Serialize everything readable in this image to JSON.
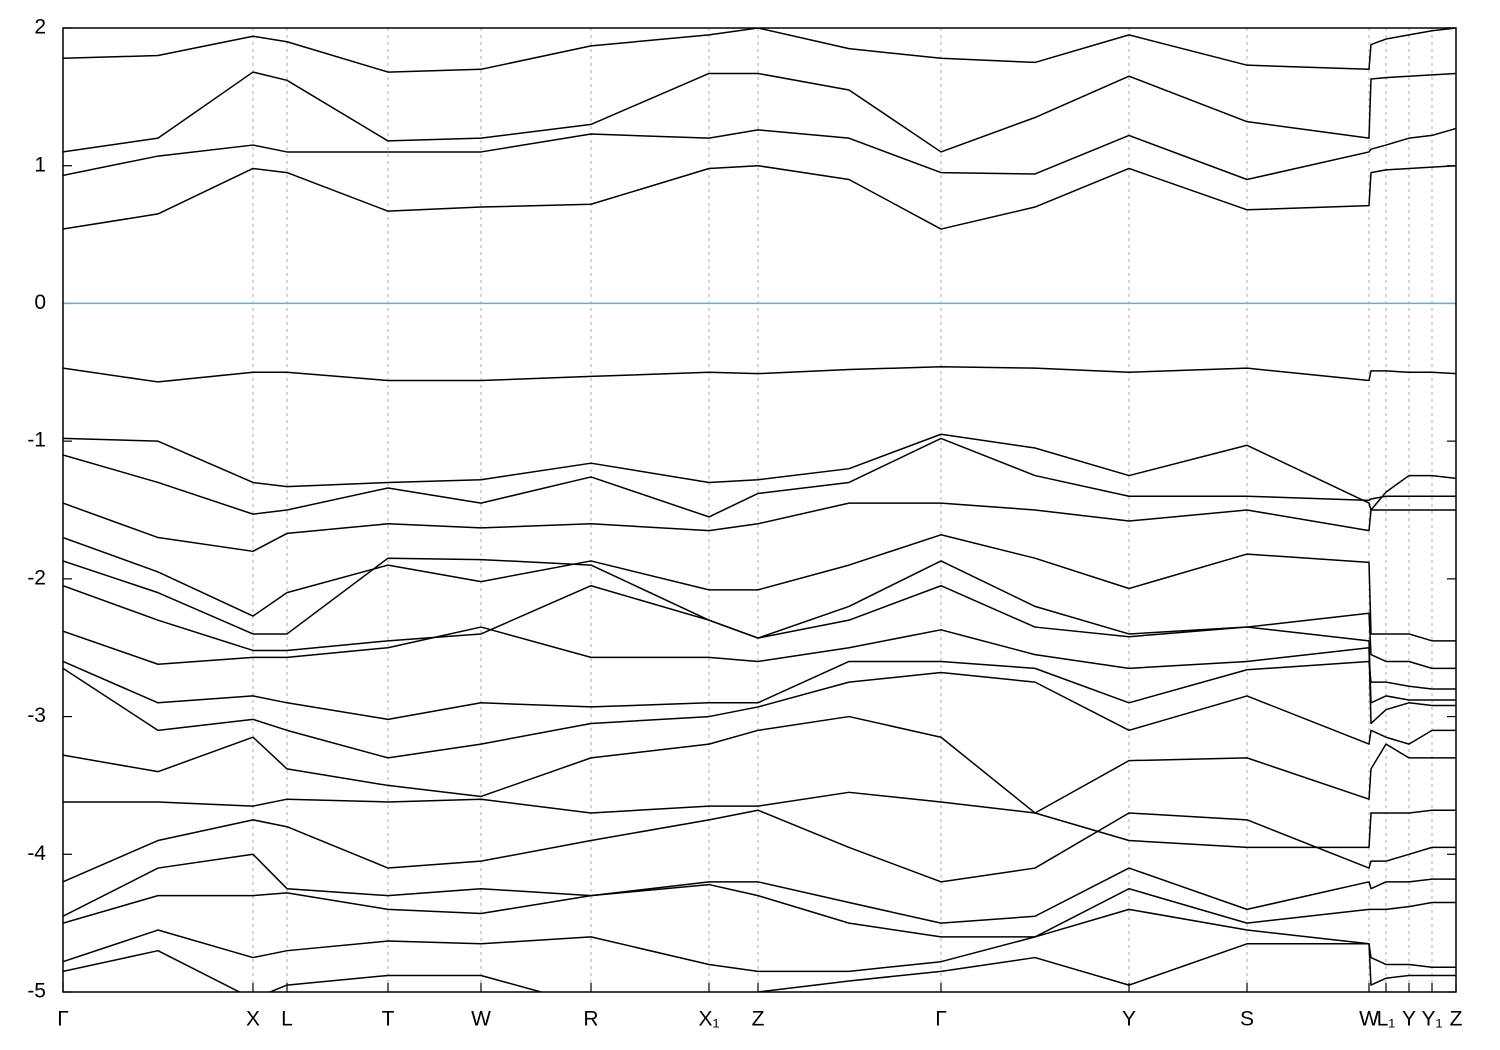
{
  "chart_data": {
    "type": "line",
    "x": [
      0,
      95,
      190,
      224,
      325,
      418,
      528,
      646,
      695,
      786,
      878,
      972,
      1066,
      1184,
      1306,
      1308,
      1323,
      1346,
      1369,
      1393
    ],
    "xlim": [
      0,
      1393
    ],
    "xticks": [
      {
        "value": 0,
        "label": "Γ"
      },
      {
        "value": 190,
        "label": "X"
      },
      {
        "value": 224,
        "label": "L"
      },
      {
        "value": 325,
        "label": "T"
      },
      {
        "value": 418,
        "label": "W"
      },
      {
        "value": 528,
        "label": "R"
      },
      {
        "value": 646,
        "label": "X₁"
      },
      {
        "value": 695,
        "label": "Z"
      },
      {
        "value": 878,
        "label": "Γ"
      },
      {
        "value": 1066,
        "label": "Y"
      },
      {
        "value": 1184,
        "label": "S"
      },
      {
        "value": 1306,
        "label": "W"
      },
      {
        "value": 1323,
        "label": "L₁"
      },
      {
        "value": 1346,
        "label": "Y"
      },
      {
        "value": 1369,
        "label": "Y₁"
      },
      {
        "value": 1393,
        "label": "Z"
      }
    ],
    "ylim": [
      -5,
      2
    ],
    "yticks": [
      -5,
      -4,
      -3,
      -2,
      -1,
      0,
      1,
      2
    ],
    "grid": true,
    "color": "#000000",
    "hline": 0,
    "hline_color": "#5fb4cc",
    "series": [
      {
        "values": [
          1.78,
          1.8,
          1.94,
          1.9,
          1.68,
          1.7,
          1.87,
          1.95,
          2.0,
          1.85,
          1.78,
          1.75,
          1.95,
          1.73,
          1.7,
          1.88,
          1.92,
          1.95,
          1.98,
          2.0
        ]
      },
      {
        "values": [
          1.1,
          1.2,
          1.68,
          1.62,
          1.18,
          1.2,
          1.3,
          1.67,
          1.67,
          1.55,
          1.1,
          1.35,
          1.65,
          1.32,
          1.2,
          1.63,
          1.64,
          1.65,
          1.66,
          1.67
        ]
      },
      {
        "values": [
          0.93,
          1.07,
          1.15,
          1.1,
          1.1,
          1.1,
          1.23,
          1.2,
          1.26,
          1.2,
          0.95,
          0.94,
          1.22,
          0.9,
          1.1,
          1.12,
          1.15,
          1.2,
          1.22,
          1.27
        ]
      },
      {
        "values": [
          0.54,
          0.65,
          0.98,
          0.95,
          0.67,
          0.7,
          0.72,
          0.98,
          1.0,
          0.9,
          0.54,
          0.7,
          0.98,
          0.68,
          0.71,
          0.95,
          0.97,
          0.98,
          0.99,
          1.0
        ]
      },
      {
        "values": [
          -0.47,
          -0.57,
          -0.5,
          -0.5,
          -0.56,
          -0.56,
          -0.53,
          -0.5,
          -0.51,
          -0.48,
          -0.46,
          -0.47,
          -0.5,
          -0.47,
          -0.56,
          -0.49,
          -0.49,
          -0.5,
          -0.5,
          -0.51
        ]
      },
      {
        "values": [
          -0.98,
          -1.0,
          -1.3,
          -1.33,
          -1.3,
          -1.28,
          -1.16,
          -1.3,
          -1.28,
          -1.2,
          -0.95,
          -1.05,
          -1.25,
          -1.03,
          -1.45,
          -1.5,
          -1.37,
          -1.25,
          -1.25,
          -1.27
        ]
      },
      {
        "values": [
          -1.1,
          -1.3,
          -1.53,
          -1.5,
          -1.34,
          -1.45,
          -1.26,
          -1.55,
          -1.38,
          -1.3,
          -0.98,
          -1.25,
          -1.4,
          -1.4,
          -1.43,
          -1.42,
          -1.4,
          -1.4,
          -1.4,
          -1.4
        ]
      },
      {
        "values": [
          -1.45,
          -1.7,
          -1.8,
          -1.67,
          -1.6,
          -1.63,
          -1.6,
          -1.65,
          -1.6,
          -1.45,
          -1.45,
          -1.5,
          -1.58,
          -1.5,
          -1.65,
          -1.5,
          -1.5,
          -1.5,
          -1.5,
          -1.5
        ]
      },
      {
        "values": [
          -1.7,
          -1.95,
          -2.27,
          -2.1,
          -1.9,
          -2.02,
          -1.87,
          -2.08,
          -2.08,
          -1.9,
          -1.68,
          -1.85,
          -2.07,
          -1.82,
          -1.88,
          -2.4,
          -2.4,
          -2.4,
          -2.45,
          -2.45
        ]
      },
      {
        "values": [
          -1.87,
          -2.1,
          -2.4,
          -2.4,
          -1.85,
          -1.86,
          -1.9,
          -2.3,
          -2.43,
          -2.2,
          -1.87,
          -2.2,
          -2.4,
          -2.35,
          -2.25,
          -2.55,
          -2.6,
          -2.6,
          -2.65,
          -2.65
        ]
      },
      {
        "values": [
          -2.05,
          -2.3,
          -2.52,
          -2.52,
          -2.45,
          -2.4,
          -2.05,
          -2.3,
          -2.43,
          -2.3,
          -2.05,
          -2.35,
          -2.42,
          -2.35,
          -2.45,
          -2.9,
          -2.85,
          -2.88,
          -2.88,
          -2.88
        ]
      },
      {
        "values": [
          -2.38,
          -2.62,
          -2.57,
          -2.57,
          -2.5,
          -2.35,
          -2.57,
          -2.57,
          -2.6,
          -2.5,
          -2.37,
          -2.55,
          -2.65,
          -2.6,
          -2.5,
          -3.05,
          -2.95,
          -2.9,
          -2.92,
          -2.92
        ]
      },
      {
        "values": [
          -2.6,
          -2.9,
          -2.85,
          -2.9,
          -3.02,
          -2.9,
          -2.93,
          -2.9,
          -2.9,
          -2.6,
          -2.6,
          -2.65,
          -2.9,
          -2.66,
          -2.6,
          -2.75,
          -2.75,
          -2.78,
          -2.8,
          -2.8
        ]
      },
      {
        "values": [
          -2.65,
          -3.1,
          -3.02,
          -3.1,
          -3.3,
          -3.2,
          -3.05,
          -3.0,
          -2.93,
          -2.75,
          -2.68,
          -2.75,
          -3.1,
          -2.85,
          -3.2,
          -3.1,
          -3.15,
          -3.2,
          -3.1,
          -3.1
        ]
      },
      {
        "values": [
          -3.28,
          -3.4,
          -3.15,
          -3.38,
          -3.5,
          -3.58,
          -3.3,
          -3.2,
          -3.1,
          -3.0,
          -3.15,
          -3.7,
          -3.32,
          -3.3,
          -3.6,
          -3.38,
          -3.2,
          -3.3,
          -3.3,
          -3.3
        ]
      },
      {
        "values": [
          -3.62,
          -3.62,
          -3.65,
          -3.6,
          -3.62,
          -3.6,
          -3.7,
          -3.65,
          -3.65,
          -3.55,
          -3.62,
          -3.7,
          -3.9,
          -3.95,
          -3.95,
          -3.7,
          -3.7,
          -3.7,
          -3.68,
          -3.68
        ]
      },
      {
        "values": [
          -4.2,
          -3.9,
          -3.75,
          -3.8,
          -4.1,
          -4.05,
          -3.9,
          -3.75,
          -3.68,
          -3.95,
          -4.2,
          -4.1,
          -3.7,
          -3.75,
          -4.1,
          -4.05,
          -4.05,
          -4.0,
          -3.95,
          -3.95
        ]
      },
      {
        "values": [
          -4.45,
          -4.1,
          -4.0,
          -4.25,
          -4.3,
          -4.25,
          -4.3,
          -4.2,
          -4.2,
          -4.35,
          -4.5,
          -4.45,
          -4.1,
          -4.4,
          -4.2,
          -4.25,
          -4.2,
          -4.2,
          -4.18,
          -4.18
        ]
      },
      {
        "values": [
          -4.5,
          -4.3,
          -4.3,
          -4.28,
          -4.4,
          -4.43,
          -4.3,
          -4.22,
          -4.3,
          -4.5,
          -4.6,
          -4.6,
          -4.25,
          -4.5,
          -4.4,
          -4.4,
          -4.4,
          -4.38,
          -4.35,
          -4.35
        ]
      },
      {
        "values": [
          -4.78,
          -4.55,
          -4.75,
          -4.7,
          -4.63,
          -4.65,
          -4.6,
          -4.8,
          -4.85,
          -4.85,
          -4.78,
          -4.6,
          -4.4,
          -4.55,
          -4.65,
          -4.75,
          -4.8,
          -4.8,
          -4.82,
          -4.82
        ]
      },
      {
        "values": [
          -4.85,
          -4.7,
          -5.05,
          -4.95,
          -4.88,
          -4.88,
          -5.1,
          -5.1,
          -5.0,
          -4.92,
          -4.85,
          -4.75,
          -4.95,
          -4.65,
          -4.65,
          -4.95,
          -4.9,
          -4.88,
          -4.88,
          -4.88
        ]
      }
    ]
  }
}
